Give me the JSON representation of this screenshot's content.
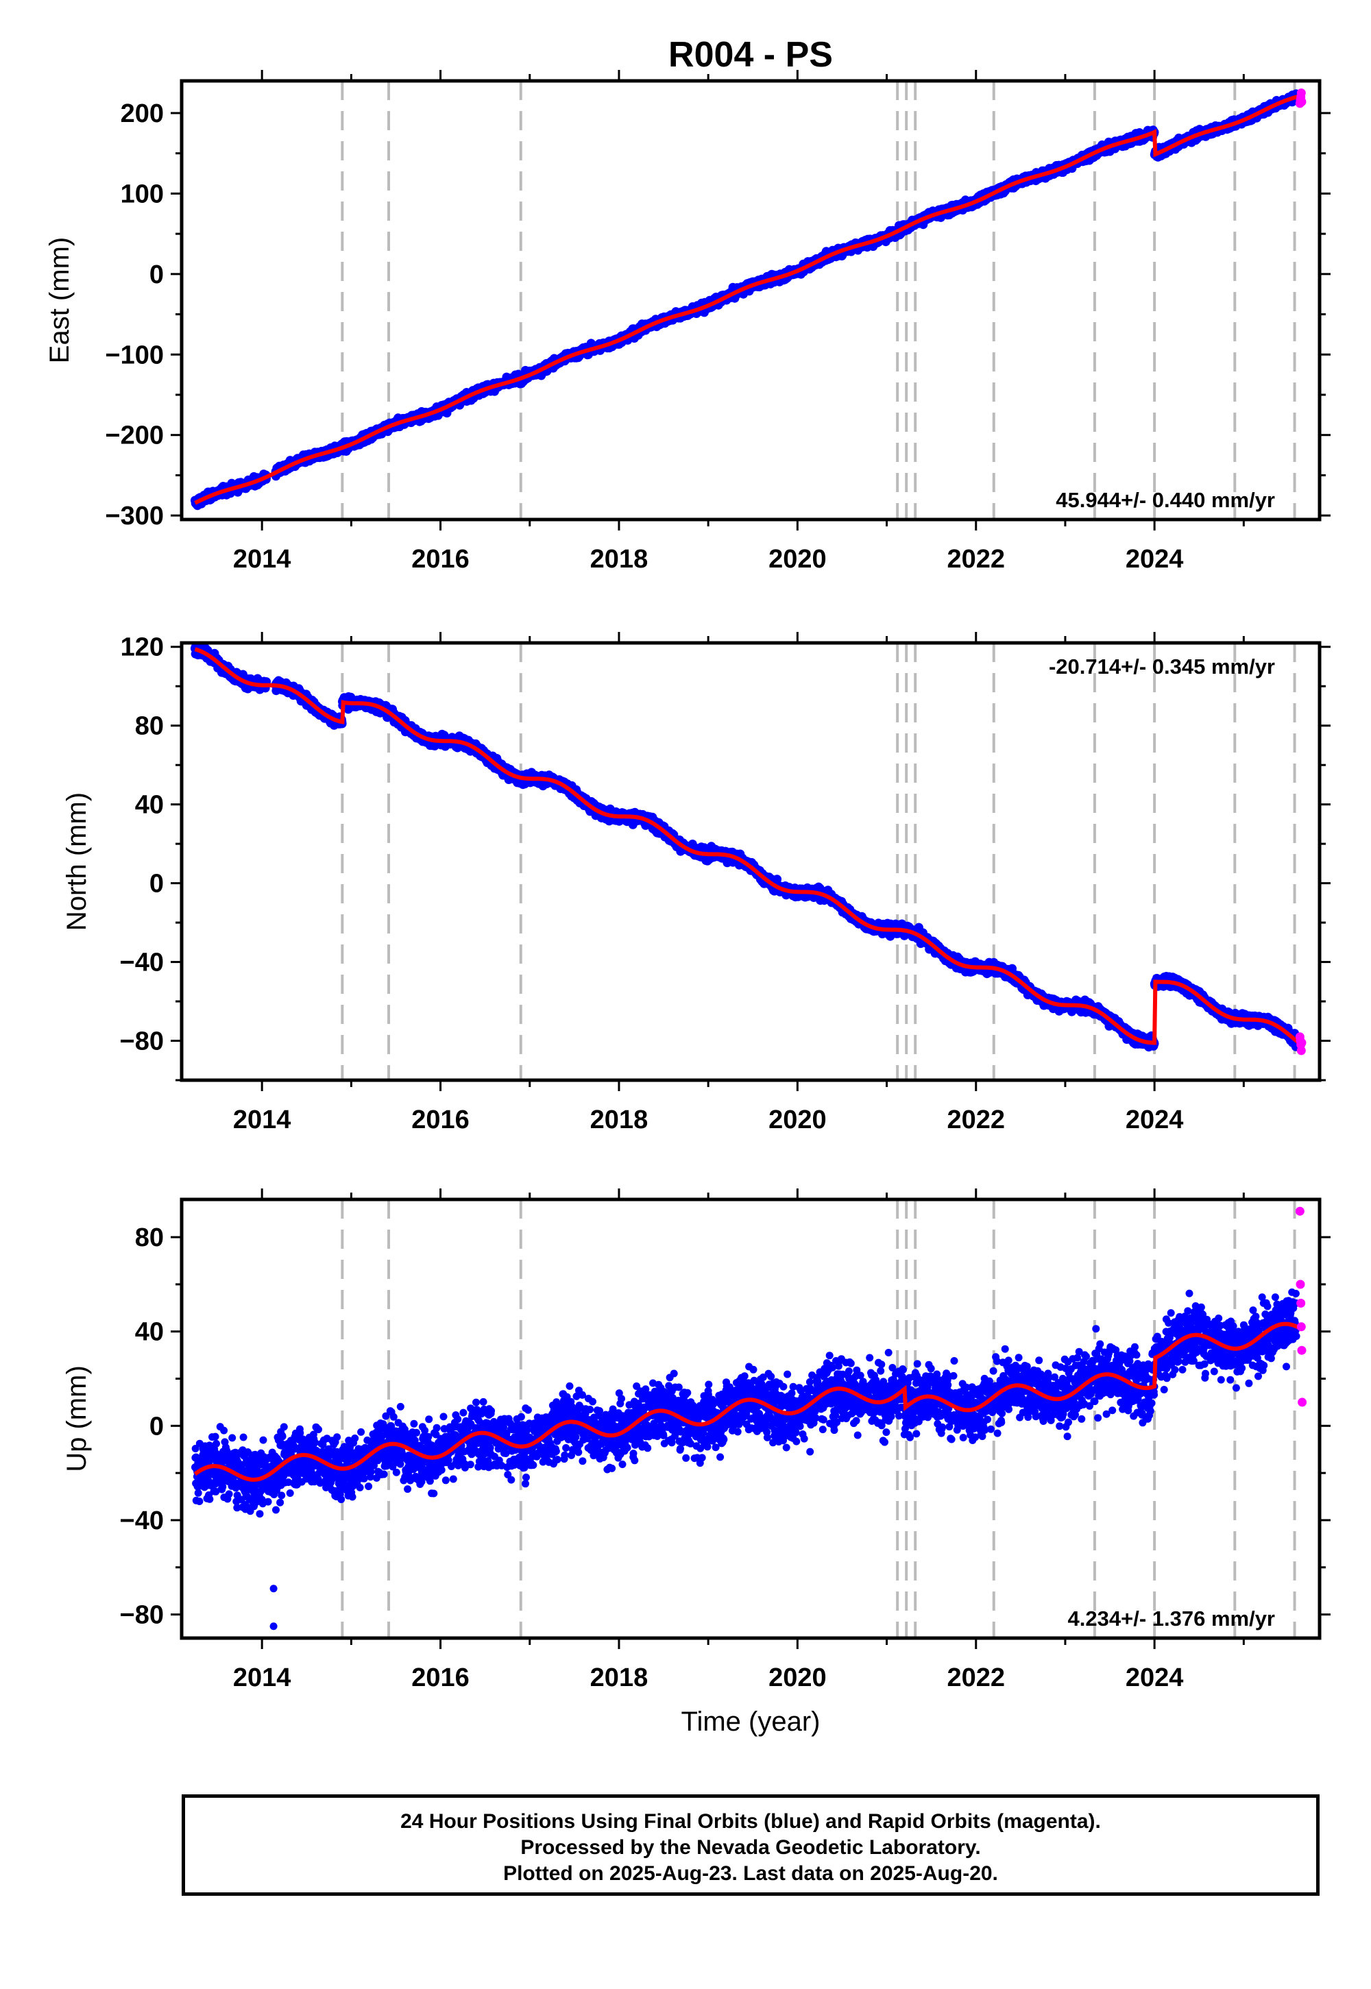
{
  "title": "R004 - PS",
  "xlabel": "Time (year)",
  "footer": {
    "line1": "24 Hour Positions Using Final Orbits (blue) and Rapid Orbits (magenta).",
    "line2": "Processed by the Nevada Geodetic Laboratory.",
    "line3": "Plotted on 2025-Aug-23. Last data on 2025-Aug-20."
  },
  "colors": {
    "final": "#0000ff",
    "rapid": "#ff00ff",
    "model": "#ff0000",
    "event_line": "#bbbbbb"
  },
  "chart_data": [
    {
      "type": "scatter",
      "panel": "east",
      "ylabel": "East (mm)",
      "rate_label": "45.944+/- 0.440 mm/yr",
      "rate_position": "bottom-right",
      "xlim": [
        2013.1,
        2025.85
      ],
      "ylim": [
        -305,
        240
      ],
      "yticks": [
        -300,
        -200,
        -100,
        0,
        100,
        200
      ],
      "ytick_labels": [
        "−300",
        "−200",
        "−100",
        "0",
        "100",
        "200"
      ],
      "xticks": [
        2014,
        2016,
        2018,
        2020,
        2022,
        2024
      ],
      "rate": 45.944,
      "start": [
        2013.25,
        -285
      ],
      "end": [
        2025.62,
        220
      ],
      "noise": 3.5,
      "annual_amp": 2,
      "annual_phase": 0.3,
      "offsets": [
        {
          "t": 2024.0,
          "d": -28
        }
      ],
      "rapid_values": [
        212,
        216,
        220,
        225,
        214
      ],
      "grid": false,
      "legend": "none"
    },
    {
      "type": "scatter",
      "panel": "north",
      "ylabel": "North (mm)",
      "rate_label": "-20.714+/- 0.345 mm/yr",
      "rate_position": "top-right",
      "xlim": [
        2013.1,
        2025.85
      ],
      "ylim": [
        -100,
        122
      ],
      "yticks": [
        -80,
        -40,
        0,
        40,
        80,
        120
      ],
      "ytick_labels": [
        "−80",
        "−40",
        "0",
        "40",
        "80",
        "120"
      ],
      "xticks": [
        2014,
        2016,
        2018,
        2020,
        2022,
        2024
      ],
      "rate": -20.714,
      "start": [
        2013.25,
        116
      ],
      "end": [
        2025.62,
        -80
      ],
      "noise": 1.8,
      "annual_amp": 3,
      "annual_phase": 1.2,
      "offsets": [
        {
          "t": 2014.9,
          "d": 10
        },
        {
          "t": 2024.0,
          "d": 31
        }
      ],
      "rapid_values": [
        -78,
        -80,
        -82,
        -85,
        -81
      ],
      "grid": false,
      "legend": "none"
    },
    {
      "type": "scatter",
      "panel": "up",
      "ylabel": "Up (mm)",
      "rate_label": "4.234+/- 1.376 mm/yr",
      "rate_position": "bottom-right",
      "xlim": [
        2013.1,
        2025.85
      ],
      "ylim": [
        -90,
        96
      ],
      "yticks": [
        -80,
        -40,
        0,
        40,
        80
      ],
      "ytick_labels": [
        "−80",
        "−40",
        "0",
        "40",
        "80"
      ],
      "xticks": [
        2014,
        2016,
        2018,
        2020,
        2022,
        2024
      ],
      "rate": 4.234,
      "start": [
        2013.25,
        -22
      ],
      "end": [
        2025.62,
        40
      ],
      "noise": 9,
      "annual_amp": 4,
      "annual_phase": 0.4,
      "offsets": [
        {
          "t": 2021.2,
          "d": -8
        },
        {
          "t": 2024.0,
          "d": 12
        }
      ],
      "outliers": [
        {
          "x": 2014.13,
          "y": -69
        },
        {
          "x": 2014.13,
          "y": -85
        }
      ],
      "rapid_values": [
        91,
        60,
        52,
        42,
        32,
        10
      ],
      "grid": false,
      "legend": "none"
    }
  ],
  "event_lines": [
    2014.9,
    2015.42,
    2016.9,
    2021.12,
    2021.22,
    2021.32,
    2022.2,
    2023.33,
    2024.0,
    2024.9,
    2025.57
  ],
  "xtick_labels": [
    "2014",
    "2016",
    "2018",
    "2020",
    "2022",
    "2024"
  ]
}
